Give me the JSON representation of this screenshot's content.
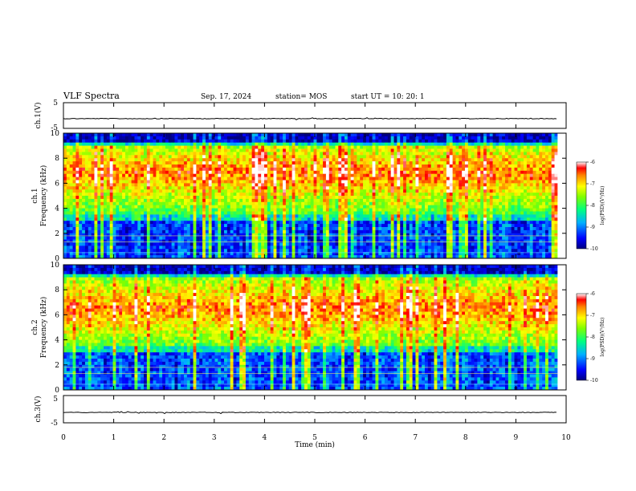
{
  "header": {
    "title": "VLF Spectra",
    "date": "Sep. 17, 2024",
    "station": "station= MOS",
    "start_ut": "start  UT =   10: 20: 1"
  },
  "chart_data": [
    {
      "type": "line",
      "name": "ch1-waveform",
      "ylabel": "ch.1(V)",
      "ylim": [
        -5,
        5
      ],
      "yticks": [
        "5",
        "-5"
      ],
      "level": -1.2
    },
    {
      "type": "heatmap",
      "name": "ch1-spectrogram",
      "ylabel": "ch.1\nFrequency  (kHz)",
      "ylabel_line1": "ch.1",
      "ylabel_line2": "Frequency  (kHz)",
      "ylim": [
        0,
        10
      ],
      "yticks": [
        "0",
        "2",
        "4",
        "6",
        "8",
        "10"
      ],
      "colorbar": {
        "label": "log(PSD)(V²/Hz)",
        "range": [
          -10,
          -6
        ],
        "ticks": [
          "-6",
          "-7",
          "-8",
          "-9",
          "-10"
        ]
      },
      "band_kHz": [
        3.5,
        9.0
      ],
      "peak_kHz": 6.8
    },
    {
      "type": "heatmap",
      "name": "ch2-spectrogram",
      "ylabel_line1": "ch.2",
      "ylabel_line2": "Frequency  (kHz)",
      "ylim": [
        0,
        10
      ],
      "yticks": [
        "0",
        "2",
        "4",
        "6",
        "8",
        "10"
      ],
      "colorbar": {
        "label": "log(PSD)(V²/Hz)",
        "range": [
          -10,
          -6
        ],
        "ticks": [
          "-6",
          "-7",
          "-8",
          "-9",
          "-10"
        ]
      },
      "band_kHz": [
        3.5,
        9.0
      ],
      "peak_kHz": 6.5
    },
    {
      "type": "line",
      "name": "ch3-waveform",
      "ylabel": "ch.3(V)",
      "ylim": [
        -5,
        5
      ],
      "yticks": [
        "5",
        "-5"
      ],
      "level": -1.2
    }
  ],
  "x_axis": {
    "label": "Time  (min)",
    "range": [
      0,
      10
    ],
    "ticks": [
      "0",
      "1",
      "2",
      "3",
      "4",
      "5",
      "6",
      "7",
      "8",
      "9",
      "10"
    ],
    "data_end": 9.83
  }
}
